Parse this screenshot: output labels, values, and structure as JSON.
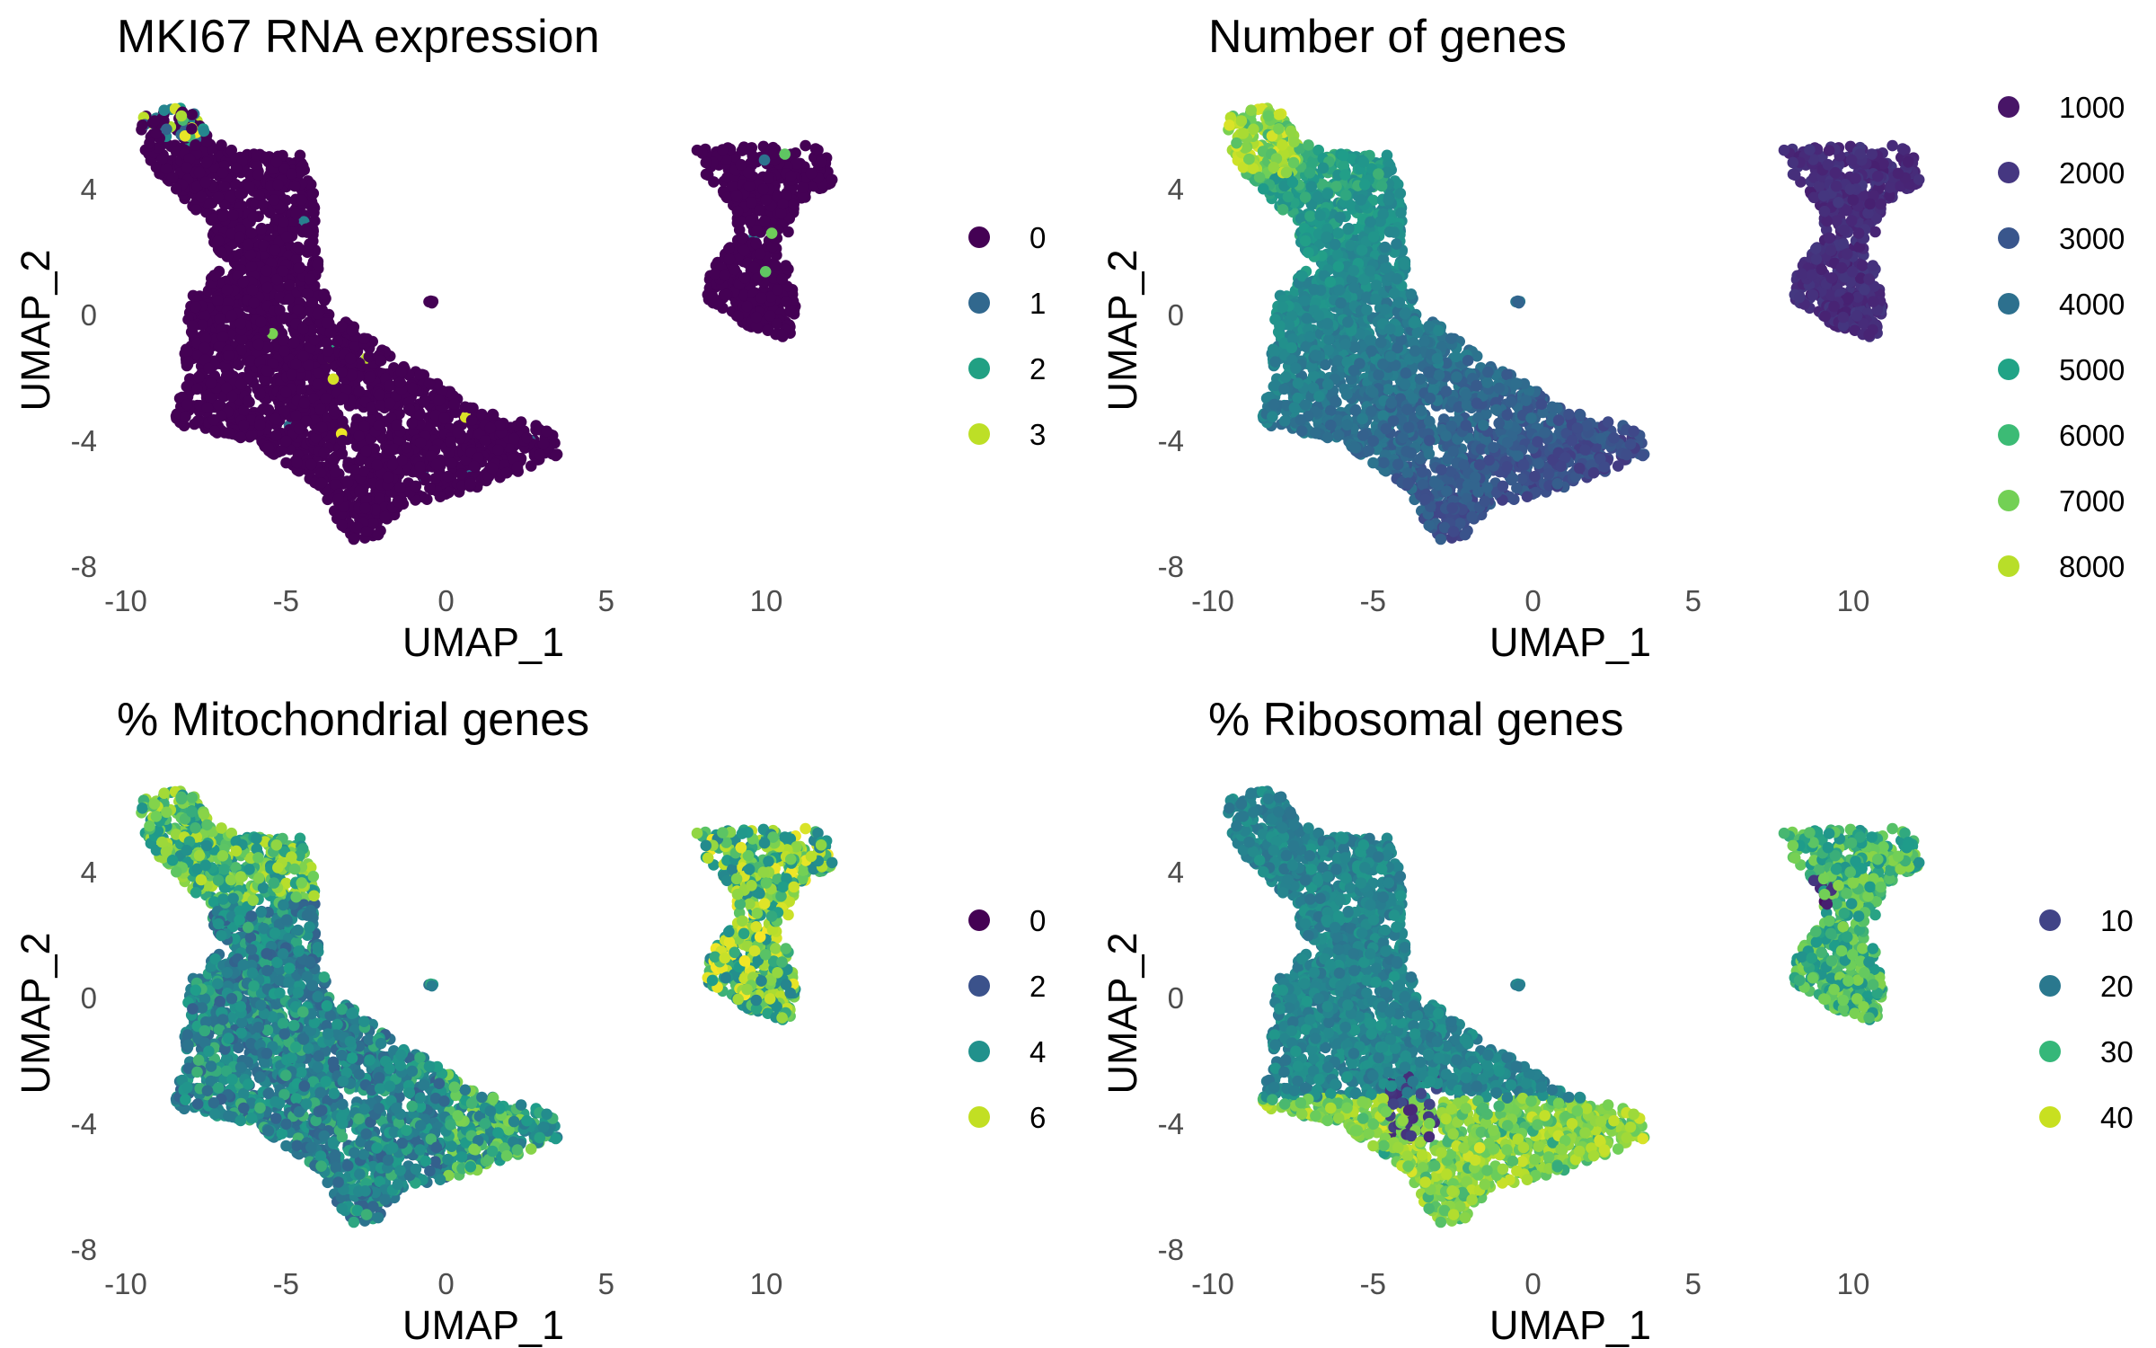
{
  "figure": {
    "layout": "2x2 grid of UMAP scatter panels"
  },
  "chart_data": [
    {
      "type": "scatter",
      "title": "MKI67 RNA expression",
      "xlabel": "UMAP_1",
      "ylabel": "UMAP_2",
      "xlim": [
        -10,
        13
      ],
      "ylim": [
        -8,
        7
      ],
      "xticks": [
        -10,
        -5,
        0,
        5,
        10
      ],
      "yticks": [
        -8,
        -4,
        0,
        4
      ],
      "grid": false,
      "colormap": "viridis",
      "color_range": [
        0,
        3
      ],
      "legend": {
        "position": "right",
        "entries": [
          "0",
          "1",
          "2",
          "3"
        ],
        "colors": [
          "#440154",
          "#31688e",
          "#21a083",
          "#bddf26"
        ]
      }
    },
    {
      "type": "scatter",
      "title": "Number of genes",
      "xlabel": "UMAP_1",
      "ylabel": "UMAP_2",
      "xlim": [
        -10,
        13
      ],
      "ylim": [
        -8,
        7
      ],
      "xticks": [
        -10,
        -5,
        0,
        5,
        10
      ],
      "yticks": [
        -8,
        -4,
        0,
        4
      ],
      "grid": false,
      "colormap": "viridis",
      "color_range": [
        500,
        8500
      ],
      "legend": {
        "position": "right",
        "entries": [
          "1000",
          "2000",
          "3000",
          "4000",
          "5000",
          "6000",
          "7000",
          "8000"
        ],
        "colors": [
          "#481567",
          "#453781",
          "#39568c",
          "#2d708e",
          "#20a386",
          "#3cbb75",
          "#73d055",
          "#b8de29"
        ]
      }
    },
    {
      "type": "scatter",
      "title": "% Mitochondrial genes",
      "xlabel": "UMAP_1",
      "ylabel": "UMAP_2",
      "xlim": [
        -10,
        13
      ],
      "ylim": [
        -8,
        7
      ],
      "xticks": [
        -10,
        -5,
        0,
        5,
        10
      ],
      "yticks": [
        -8,
        -4,
        0,
        4
      ],
      "grid": false,
      "colormap": "viridis",
      "color_range": [
        0,
        7
      ],
      "legend": {
        "position": "right",
        "entries": [
          "0",
          "2",
          "4",
          "6"
        ],
        "colors": [
          "#440154",
          "#3b528b",
          "#21918c",
          "#c2df23"
        ]
      }
    },
    {
      "type": "scatter",
      "title": "% Ribosomal genes",
      "xlabel": "UMAP_1",
      "ylabel": "UMAP_2",
      "xlim": [
        -10,
        13
      ],
      "ylim": [
        -8,
        7
      ],
      "xticks": [
        -10,
        -5,
        0,
        5,
        10
      ],
      "yticks": [
        -8,
        -4,
        0,
        4
      ],
      "grid": false,
      "colormap": "viridis",
      "color_range": [
        5,
        45
      ],
      "legend": {
        "position": "right",
        "entries": [
          "10",
          "20",
          "30",
          "40"
        ],
        "colors": [
          "#414487",
          "#2a788e",
          "#35b779",
          "#c8e020"
        ]
      }
    }
  ]
}
